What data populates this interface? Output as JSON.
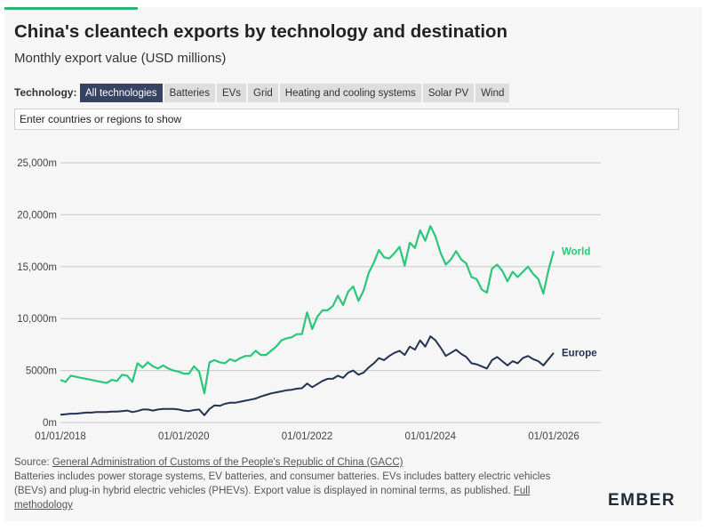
{
  "title": "China's cleantech exports by technology and destination",
  "subtitle": "Monthly export value (USD millions)",
  "technology_label": "Technology:",
  "tabs": [
    {
      "label": "All technologies",
      "active": true
    },
    {
      "label": "Batteries"
    },
    {
      "label": "EVs"
    },
    {
      "label": "Grid"
    },
    {
      "label": "Heating and cooling systems"
    },
    {
      "label": "Solar PV"
    },
    {
      "label": "Wind"
    }
  ],
  "search": {
    "placeholder": "Enter countries or regions to show"
  },
  "footer": {
    "source_prefix": "Source: ",
    "source_link": "General Administration of Customs of the People's Republic of China (GACC)",
    "note": "Batteries includes power storage systems, EV batteries, and consumer batteries. EVs includes battery electric vehicles (BEVs) and plug-in hybrid electric vehicles (PHEVs). Export value is displayed in nominal terms, as published.",
    "methodology_link": "Full methodology"
  },
  "logo": "EMBER",
  "chart_data": {
    "type": "line",
    "xlabel": "",
    "ylabel": "",
    "x_start": "01/01/2018",
    "months": 97,
    "ylim": [
      0,
      27000
    ],
    "y_ticks": [
      {
        "value": 0,
        "label": "0m"
      },
      {
        "value": 5000,
        "label": "5000m"
      },
      {
        "value": 10000,
        "label": "10,000m"
      },
      {
        "value": 15000,
        "label": "15,000m"
      },
      {
        "value": 20000,
        "label": "20,000m"
      },
      {
        "value": 25000,
        "label": "25,000m"
      }
    ],
    "x_ticks": [
      {
        "index": 0,
        "label": "01/01/2018"
      },
      {
        "index": 24,
        "label": "01/01/2020"
      },
      {
        "index": 48,
        "label": "01/01/2022"
      },
      {
        "index": 72,
        "label": "01/01/2024"
      },
      {
        "index": 96,
        "label": "01/01/2026"
      }
    ],
    "grid": true,
    "series": [
      {
        "name": "World",
        "color": "#2bc67a",
        "width": 2.2,
        "values": [
          4100,
          3900,
          4500,
          4400,
          4300,
          4200,
          4100,
          4000,
          3900,
          3800,
          4100,
          4000,
          4600,
          4500,
          3900,
          5700,
          5300,
          5800,
          5400,
          5200,
          5500,
          5200,
          5000,
          4900,
          4700,
          4700,
          5400,
          4900,
          2800,
          5800,
          6000,
          5800,
          5700,
          6100,
          5900,
          6200,
          6400,
          6400,
          6900,
          6500,
          6500,
          6900,
          7300,
          7900,
          8100,
          8200,
          8500,
          8500,
          10600,
          9000,
          10200,
          10800,
          10800,
          11200,
          12200,
          11300,
          12600,
          13100,
          11700,
          12700,
          14400,
          15400,
          16600,
          15900,
          15800,
          16300,
          16900,
          15100,
          17300,
          16800,
          18500,
          17500,
          18900,
          17900,
          16300,
          15200,
          15700,
          16500,
          15700,
          15300,
          14000,
          13800,
          12800,
          12500,
          14800,
          15200,
          14600,
          13600,
          14500,
          14000,
          14500,
          15000,
          14300,
          13800,
          12400,
          14700,
          16500
        ]
      },
      {
        "name": "Europe",
        "color": "#243252",
        "width": 2.0,
        "values": [
          750,
          800,
          850,
          850,
          900,
          950,
          950,
          1000,
          1000,
          1000,
          1050,
          1050,
          1100,
          1150,
          1000,
          1100,
          1250,
          1250,
          1150,
          1250,
          1300,
          1300,
          1300,
          1250,
          1150,
          1100,
          1200,
          1250,
          700,
          1300,
          1650,
          1600,
          1800,
          1900,
          1900,
          2000,
          2100,
          2200,
          2300,
          2500,
          2650,
          2800,
          2900,
          3000,
          3100,
          3150,
          3250,
          3300,
          3750,
          3400,
          3700,
          4000,
          4200,
          4200,
          4500,
          4300,
          4800,
          5000,
          4600,
          4800,
          5300,
          5700,
          6200,
          6000,
          6400,
          6700,
          6900,
          6500,
          7300,
          7000,
          7900,
          7300,
          8300,
          7900,
          7200,
          6400,
          6700,
          7000,
          6600,
          6300,
          5700,
          5600,
          5400,
          5200,
          6000,
          6300,
          5900,
          5500,
          5900,
          5700,
          6200,
          6400,
          6100,
          5900,
          5500,
          6100,
          6700
        ]
      }
    ]
  }
}
